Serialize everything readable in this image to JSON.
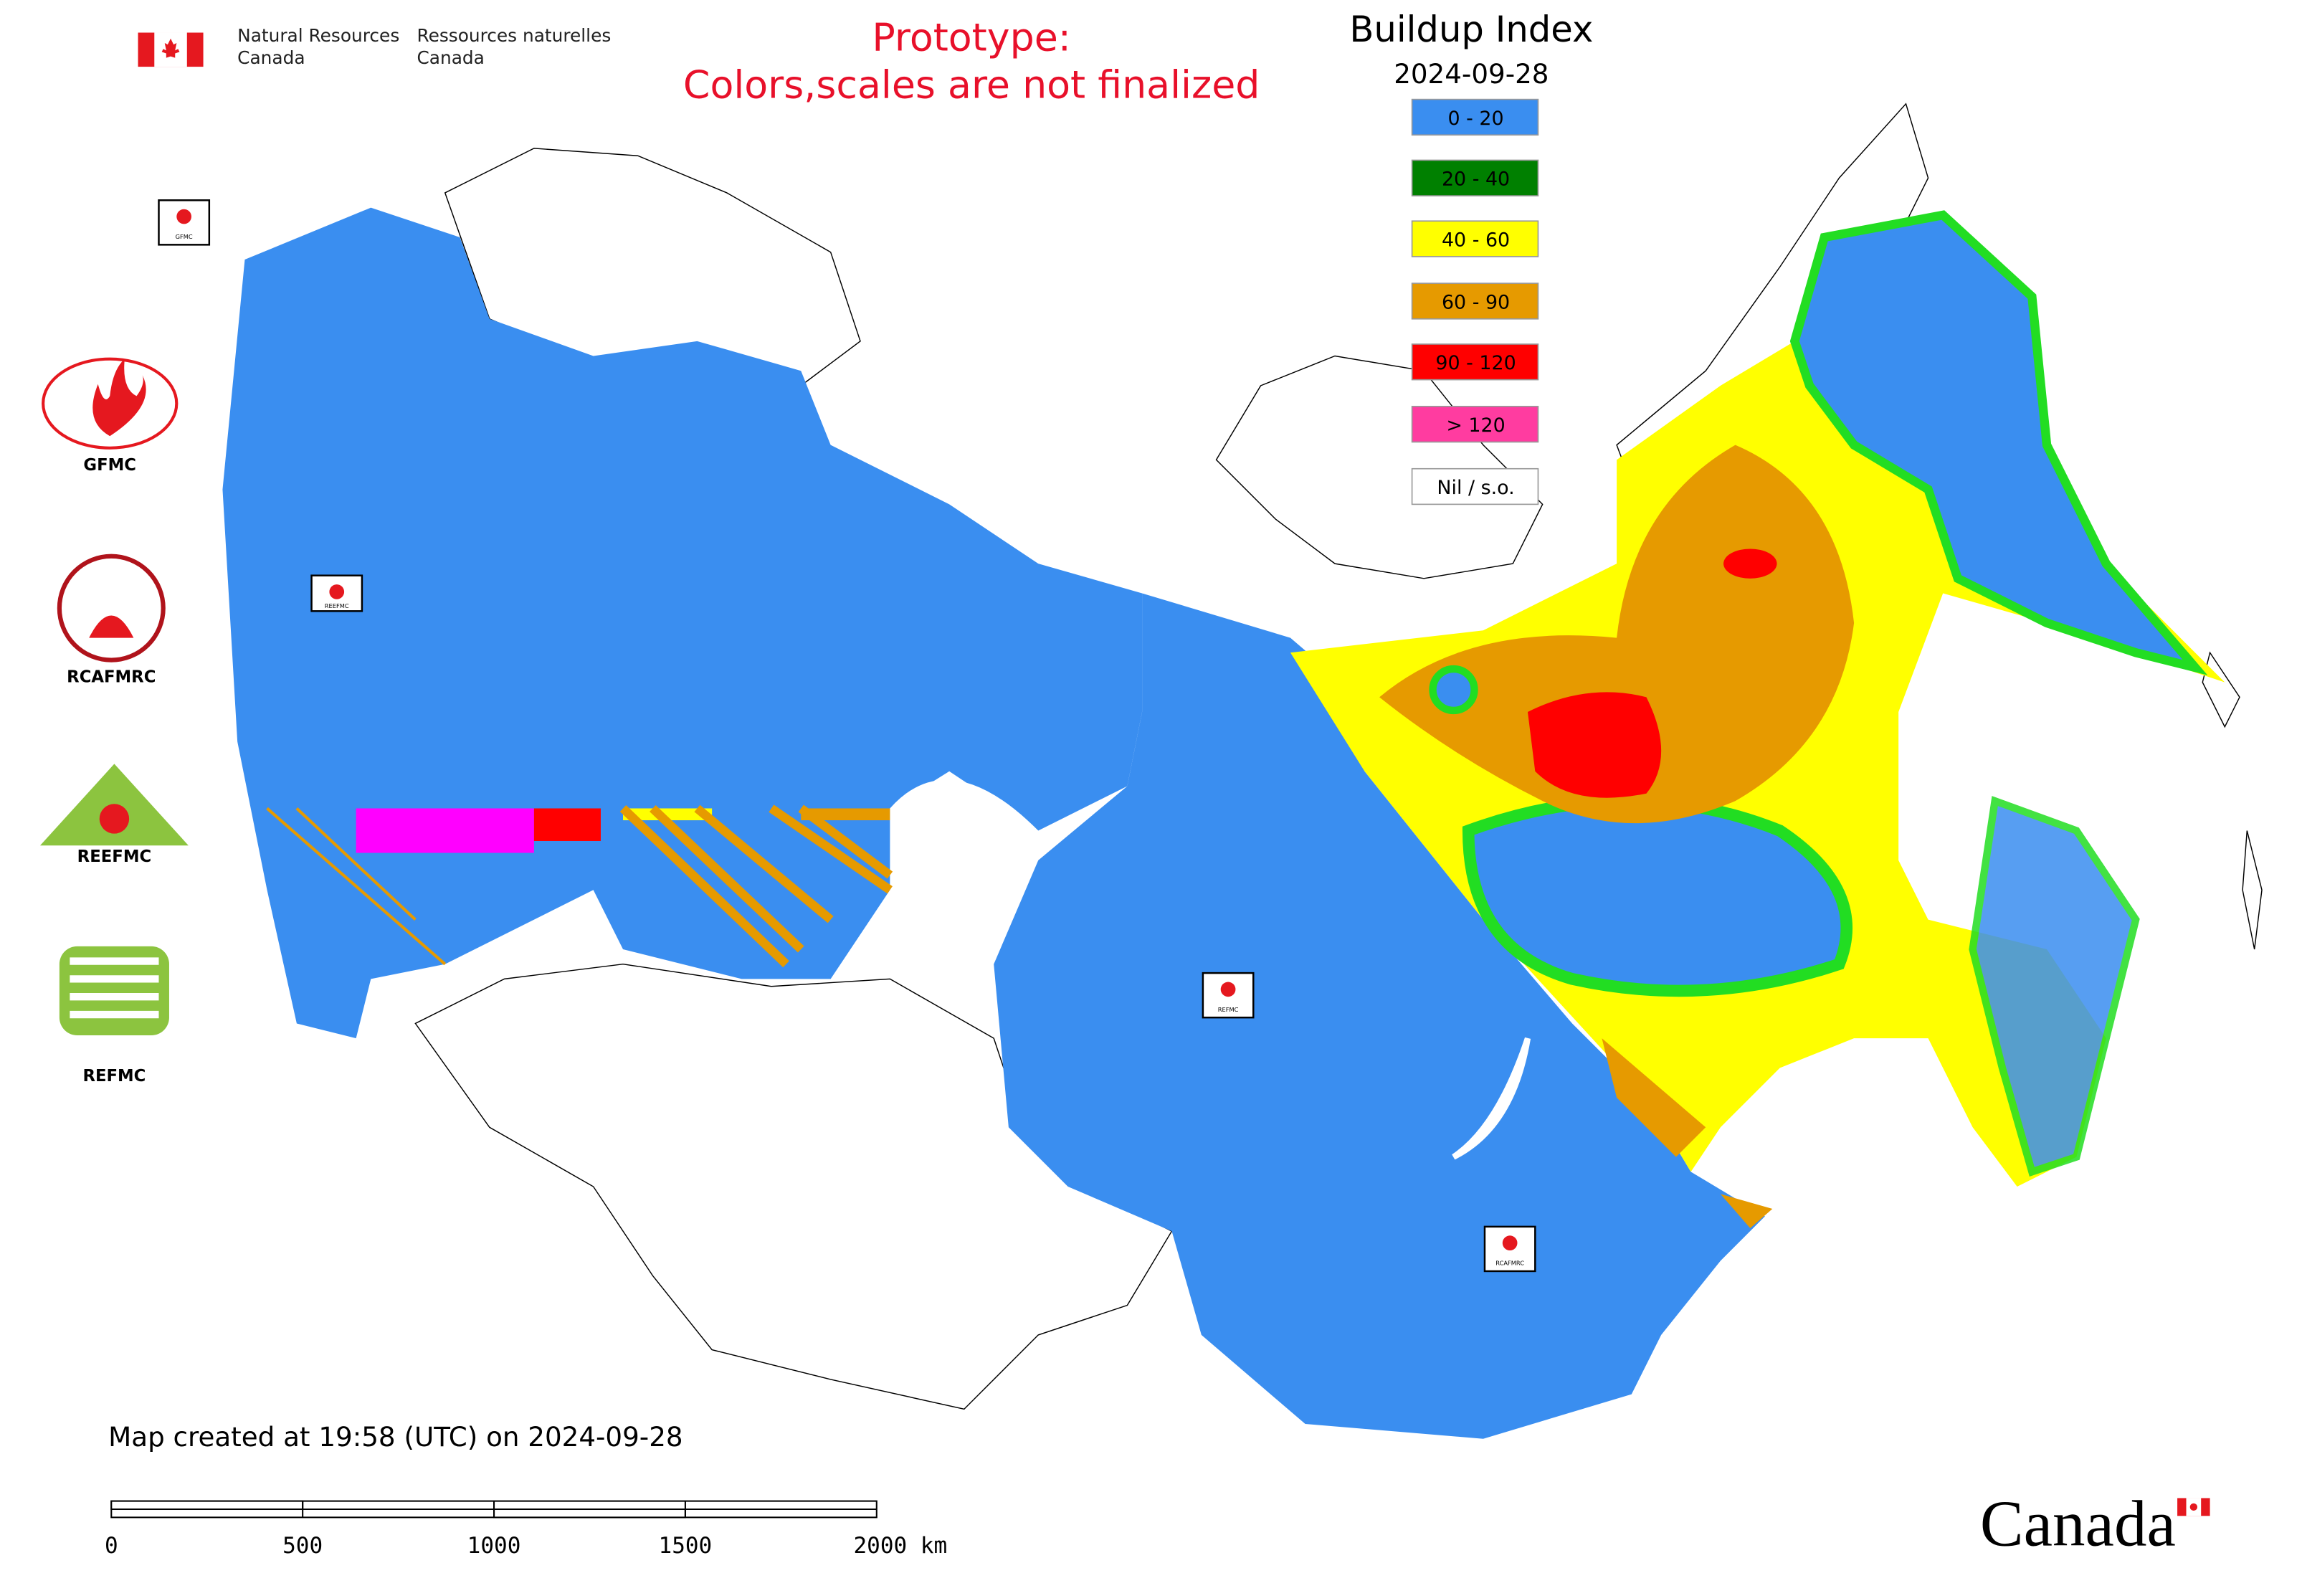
{
  "header": {
    "agency_en_1": "Natural Resources",
    "agency_en_2": "Canada",
    "agency_fr_1": "Ressources naturelles",
    "agency_fr_2": "Canada"
  },
  "notice": {
    "line1": "Prototype:",
    "line2": "Colors,scales are not finalized"
  },
  "legend": {
    "title": "Buildup Index",
    "date": "2024-09-28",
    "items": [
      {
        "label": "0 - 20",
        "color": "#3a8ef0"
      },
      {
        "label": "20 - 40",
        "color": "#008000"
      },
      {
        "label": "40 - 60",
        "color": "#ffff00"
      },
      {
        "label": "60 - 90",
        "color": "#e69a00"
      },
      {
        "label": "90 - 120",
        "color": "#ff0000"
      },
      {
        "label": "> 120",
        "color": "#ff3ca0"
      },
      {
        "label": "Nil / s.o.",
        "color": "#ffffff"
      }
    ]
  },
  "side_logos": [
    {
      "label": "GFMC"
    },
    {
      "label": "RCAFMRC"
    },
    {
      "label": "REEFMC"
    },
    {
      "label": "REFMC"
    }
  ],
  "map_logos": [
    {
      "label": "GFMC"
    },
    {
      "label": "REEFMC"
    },
    {
      "label": "REFMC"
    },
    {
      "label": "RCAFMRC"
    }
  ],
  "footer": {
    "created": "Map created at 19:58 (UTC) on 2024-09-28",
    "scale_labels": [
      "0",
      "500",
      "1000",
      "1500",
      "2000 km"
    ],
    "wordmark": "Canada"
  }
}
